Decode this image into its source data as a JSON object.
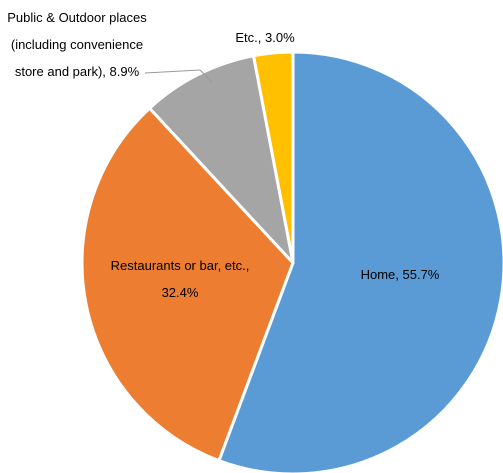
{
  "chart_data": {
    "type": "pie",
    "values": [
      55.7,
      32.4,
      8.9,
      3.0
    ],
    "value_labels": [
      "Home, 55.7%",
      "Restaurants or bar, etc., 32.4%",
      "Public & Outdoor places (including convenience store and park), 8.9%",
      "Etc., 3.0%"
    ],
    "colors": [
      "#5b9bd5",
      "#ed7d31",
      "#a5a5a5",
      "#ffc000"
    ]
  }
}
